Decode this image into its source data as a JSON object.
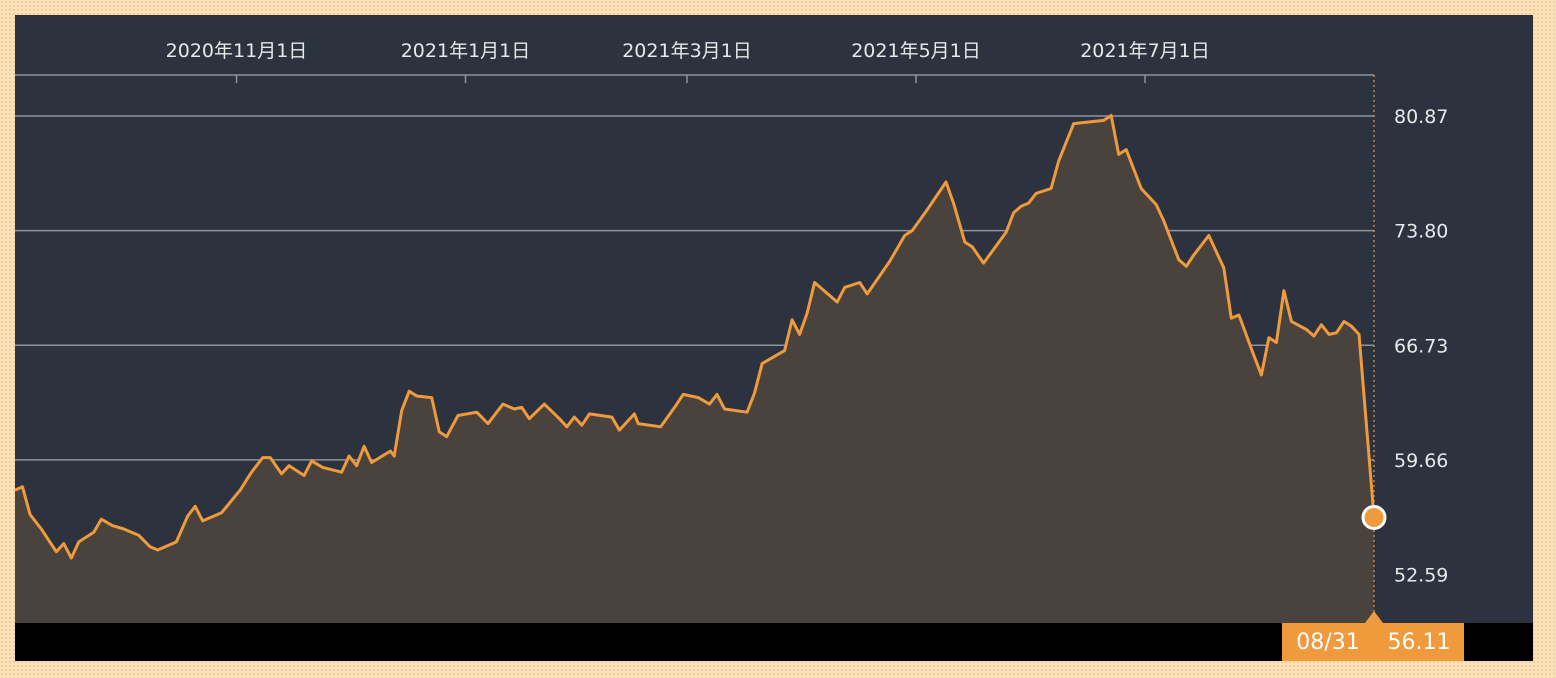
{
  "chart_data": {
    "type": "area",
    "x_tick_labels": [
      "2020年11月1日",
      "2021年1月1日",
      "2021年3月1日",
      "2021年5月1日",
      "2021年7月1日"
    ],
    "x_ticks": [
      "2020-11-01",
      "2021-01-01",
      "2021-03-01",
      "2021-05-01",
      "2021-07-01"
    ],
    "x_range": [
      "2020-09-03",
      "2021-08-31"
    ],
    "y_ticks": [
      52.59,
      59.66,
      66.73,
      73.8,
      80.87
    ],
    "y_tick_labels": [
      "52.59",
      "59.66",
      "66.73",
      "73.80",
      "80.87"
    ],
    "ylim": [
      49.6,
      83.4
    ],
    "grid": "horizontal",
    "colors": {
      "line": "#ef9a3c",
      "fill": "#4a423d",
      "grid": "#8e939a",
      "background": "#2c333e"
    },
    "series": [
      {
        "points": [
          [
            "2020-09-03",
            57.8
          ],
          [
            "2020-09-05",
            58.0
          ],
          [
            "2020-09-07",
            56.3
          ],
          [
            "2020-09-10",
            55.4
          ],
          [
            "2020-09-14",
            54.0
          ],
          [
            "2020-09-16",
            54.5
          ],
          [
            "2020-09-18",
            53.6
          ],
          [
            "2020-09-20",
            54.6
          ],
          [
            "2020-09-24",
            55.2
          ],
          [
            "2020-09-26",
            56.0
          ],
          [
            "2020-09-29",
            55.6
          ],
          [
            "2020-10-02",
            55.4
          ],
          [
            "2020-10-06",
            55.0
          ],
          [
            "2020-10-09",
            54.3
          ],
          [
            "2020-10-11",
            54.1
          ],
          [
            "2020-10-16",
            54.6
          ],
          [
            "2020-10-19",
            56.2
          ],
          [
            "2020-10-21",
            56.8
          ],
          [
            "2020-10-23",
            55.9
          ],
          [
            "2020-10-28",
            56.4
          ],
          [
            "2020-11-02",
            57.8
          ],
          [
            "2020-11-05",
            58.9
          ],
          [
            "2020-11-08",
            59.8
          ],
          [
            "2020-11-10",
            59.8
          ],
          [
            "2020-11-13",
            58.8
          ],
          [
            "2020-11-15",
            59.3
          ],
          [
            "2020-11-19",
            58.7
          ],
          [
            "2020-11-21",
            59.6
          ],
          [
            "2020-11-24",
            59.2
          ],
          [
            "2020-11-29",
            58.9
          ],
          [
            "2020-12-01",
            59.9
          ],
          [
            "2020-12-03",
            59.3
          ],
          [
            "2020-12-05",
            60.5
          ],
          [
            "2020-12-07",
            59.5
          ],
          [
            "2020-12-12",
            60.2
          ],
          [
            "2020-12-13",
            59.9
          ],
          [
            "2020-12-15",
            62.7
          ],
          [
            "2020-12-17",
            63.9
          ],
          [
            "2020-12-19",
            63.6
          ],
          [
            "2020-12-23",
            63.5
          ],
          [
            "2020-12-25",
            61.4
          ],
          [
            "2020-12-27",
            61.1
          ],
          [
            "2020-12-30",
            62.4
          ],
          [
            "2021-01-04",
            62.6
          ],
          [
            "2021-01-07",
            61.9
          ],
          [
            "2021-01-11",
            63.1
          ],
          [
            "2021-01-14",
            62.8
          ],
          [
            "2021-01-16",
            62.9
          ],
          [
            "2021-01-18",
            62.2
          ],
          [
            "2021-01-22",
            63.1
          ],
          [
            "2021-01-26",
            62.2
          ],
          [
            "2021-01-28",
            61.7
          ],
          [
            "2021-01-30",
            62.3
          ],
          [
            "2021-02-01",
            61.8
          ],
          [
            "2021-02-03",
            62.5
          ],
          [
            "2021-02-09",
            62.3
          ],
          [
            "2021-02-11",
            61.5
          ],
          [
            "2021-02-15",
            62.5
          ],
          [
            "2021-02-16",
            61.9
          ],
          [
            "2021-02-22",
            61.7
          ],
          [
            "2021-02-26",
            63.0
          ],
          [
            "2021-02-28",
            63.7
          ],
          [
            "2021-03-04",
            63.5
          ],
          [
            "2021-03-07",
            63.1
          ],
          [
            "2021-03-09",
            63.7
          ],
          [
            "2021-03-11",
            62.8
          ],
          [
            "2021-03-17",
            62.6
          ],
          [
            "2021-03-19",
            63.8
          ],
          [
            "2021-03-21",
            65.6
          ],
          [
            "2021-03-27",
            66.4
          ],
          [
            "2021-03-29",
            68.3
          ],
          [
            "2021-03-31",
            67.4
          ],
          [
            "2021-04-02",
            68.7
          ],
          [
            "2021-04-04",
            70.6
          ],
          [
            "2021-04-10",
            69.4
          ],
          [
            "2021-04-12",
            70.3
          ],
          [
            "2021-04-16",
            70.6
          ],
          [
            "2021-04-18",
            69.9
          ],
          [
            "2021-04-24",
            71.9
          ],
          [
            "2021-04-28",
            73.5
          ],
          [
            "2021-04-30",
            73.8
          ],
          [
            "2021-05-04",
            75.1
          ],
          [
            "2021-05-09",
            76.8
          ],
          [
            "2021-05-11",
            75.5
          ],
          [
            "2021-05-14",
            73.1
          ],
          [
            "2021-05-16",
            72.8
          ],
          [
            "2021-05-19",
            71.8
          ],
          [
            "2021-05-25",
            73.7
          ],
          [
            "2021-05-27",
            74.9
          ],
          [
            "2021-05-29",
            75.3
          ],
          [
            "2021-05-31",
            75.5
          ],
          [
            "2021-06-02",
            76.1
          ],
          [
            "2021-06-06",
            76.4
          ],
          [
            "2021-06-08",
            78.1
          ],
          [
            "2021-06-12",
            80.4
          ],
          [
            "2021-06-20",
            80.6
          ],
          [
            "2021-06-22",
            80.9
          ],
          [
            "2021-06-24",
            78.5
          ],
          [
            "2021-06-26",
            78.8
          ],
          [
            "2021-06-30",
            76.4
          ],
          [
            "2021-07-04",
            75.4
          ],
          [
            "2021-07-06",
            74.4
          ],
          [
            "2021-07-10",
            72.0
          ],
          [
            "2021-07-12",
            71.6
          ],
          [
            "2021-07-14",
            72.3
          ],
          [
            "2021-07-18",
            73.5
          ],
          [
            "2021-07-22",
            71.5
          ],
          [
            "2021-07-24",
            68.4
          ],
          [
            "2021-07-26",
            68.6
          ],
          [
            "2021-07-30",
            66.1
          ],
          [
            "2021-08-01",
            64.9
          ],
          [
            "2021-08-03",
            67.2
          ],
          [
            "2021-08-05",
            66.9
          ],
          [
            "2021-08-07",
            70.1
          ],
          [
            "2021-08-09",
            68.2
          ],
          [
            "2021-08-13",
            67.7
          ],
          [
            "2021-08-15",
            67.3
          ],
          [
            "2021-08-17",
            68.0
          ],
          [
            "2021-08-19",
            67.4
          ],
          [
            "2021-08-21",
            67.5
          ],
          [
            "2021-08-23",
            68.2
          ],
          [
            "2021-08-25",
            67.9
          ],
          [
            "2021-08-27",
            67.4
          ],
          [
            "2021-08-31",
            56.11
          ]
        ]
      }
    ]
  },
  "readout": {
    "date": "08/31",
    "value": "56.11"
  }
}
